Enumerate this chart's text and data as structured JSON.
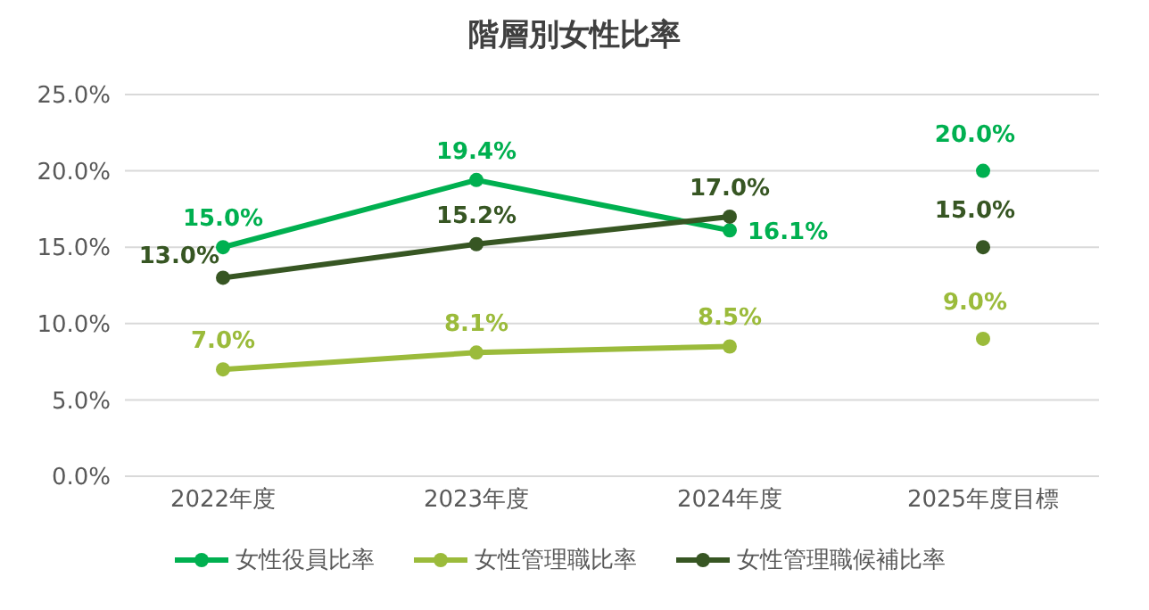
{
  "chart_data": {
    "type": "line",
    "title": "階層別女性比率",
    "categories": [
      "2022年度",
      "2023年度",
      "2024年度",
      "2025年度目標"
    ],
    "series": [
      {
        "name": "女性役員比率",
        "color": "#00b050",
        "values": [
          15.0,
          19.4,
          16.1,
          null
        ],
        "value_labels": [
          "15.0%",
          "19.4%",
          "16.1%",
          null
        ]
      },
      {
        "name": "女性管理職比率",
        "color": "#9bbb3b",
        "values": [
          7.0,
          8.1,
          8.5,
          null
        ],
        "value_labels": [
          "7.0%",
          "8.1%",
          "8.5%",
          null
        ]
      },
      {
        "name": "女性管理職候補比率",
        "color": "#375623",
        "values": [
          13.0,
          15.2,
          17.0,
          null
        ],
        "value_labels": [
          "13.0%",
          "15.2%",
          "17.0%",
          null
        ]
      },
      {
        "type": "scatter",
        "color": "#00b050",
        "values": [
          null,
          null,
          null,
          20.0
        ],
        "value_labels": [
          null,
          null,
          null,
          "20.0%"
        ]
      },
      {
        "type": "scatter",
        "color": "#9bbb3b",
        "values": [
          null,
          null,
          null,
          9.0
        ],
        "value_labels": [
          null,
          null,
          null,
          "9.0%"
        ]
      },
      {
        "type": "scatter",
        "color": "#375623",
        "values": [
          null,
          null,
          null,
          15.0
        ],
        "value_labels": [
          null,
          null,
          null,
          "15.0%"
        ]
      }
    ],
    "ylim": [
      0,
      25
    ],
    "yticks": [
      {
        "value": 0,
        "label": "0.0%"
      },
      {
        "value": 5,
        "label": "5.0%"
      },
      {
        "value": 10,
        "label": "10.0%"
      },
      {
        "value": 15,
        "label": "15.0%"
      },
      {
        "value": 20,
        "label": "20.0%"
      },
      {
        "value": 25,
        "label": "25.0%"
      }
    ],
    "grid": "y",
    "legend": "bottom",
    "marker": "circle",
    "line_style": "solid"
  }
}
